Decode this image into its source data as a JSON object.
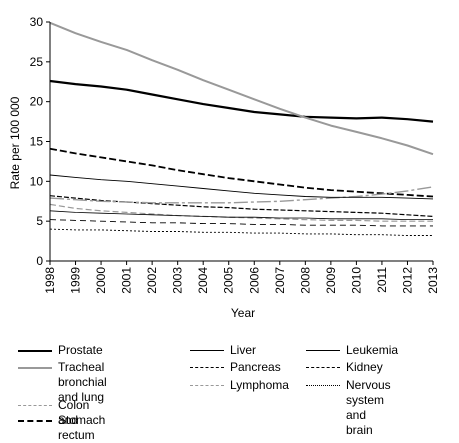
{
  "chart_data": {
    "type": "line",
    "title": "",
    "xlabel": "Year",
    "ylabel": "Rate per 100 000",
    "xlim": [
      1998,
      2013
    ],
    "ylim": [
      0,
      30
    ],
    "x_ticks": [
      "1998",
      "1999",
      "2000",
      "2001",
      "2002",
      "2003",
      "2004",
      "2005",
      "2006",
      "2007",
      "2008",
      "2009",
      "2010",
      "2011",
      "2012",
      "2013"
    ],
    "y_ticks": [
      "0",
      "5",
      "10",
      "15",
      "20",
      "25",
      "30"
    ],
    "x": [
      1998,
      1999,
      2000,
      2001,
      2002,
      2003,
      2004,
      2005,
      2006,
      2007,
      2008,
      2009,
      2010,
      2011,
      2012,
      2013
    ],
    "legend_position": "bottom",
    "series": [
      {
        "name": "Prostate",
        "color": "#000000",
        "dash": "",
        "width": 2.2,
        "values": [
          22.6,
          22.2,
          21.9,
          21.5,
          20.9,
          20.3,
          19.7,
          19.2,
          18.7,
          18.4,
          18.1,
          18.0,
          17.9,
          18.0,
          17.8,
          17.5
        ]
      },
      {
        "name": "Tracheal bronchial\nand lung",
        "color": "#999999",
        "dash": "",
        "width": 2.0,
        "values": [
          29.9,
          28.6,
          27.5,
          26.5,
          25.2,
          24.0,
          22.7,
          21.5,
          20.3,
          19.1,
          18.0,
          17.0,
          16.2,
          15.4,
          14.5,
          13.4
        ]
      },
      {
        "name": "Colon and rectum",
        "color": "#999999",
        "dash": "6,3",
        "width": 1.2,
        "values": [
          7.1,
          6.6,
          6.3,
          6.1,
          5.9,
          5.7,
          5.6,
          5.5,
          5.4,
          5.3,
          5.2,
          5.1,
          5.1,
          5.0,
          5.0,
          5.0
        ]
      },
      {
        "name": "Stomach",
        "color": "#000000",
        "dash": "7,3",
        "width": 1.8,
        "values": [
          14.1,
          13.5,
          13.0,
          12.5,
          12.0,
          11.4,
          10.9,
          10.4,
          10.0,
          9.6,
          9.2,
          8.9,
          8.7,
          8.5,
          8.3,
          8.1
        ]
      },
      {
        "name": "Liver",
        "color": "#000000",
        "dash": "",
        "width": 0.8,
        "values": [
          6.3,
          6.1,
          6.0,
          5.9,
          5.8,
          5.7,
          5.6,
          5.5,
          5.5,
          5.4,
          5.4,
          5.3,
          5.3,
          5.3,
          5.2,
          5.2
        ]
      },
      {
        "name": "Pancreas",
        "color": "#000000",
        "dash": "5,2",
        "width": 1.2,
        "values": [
          8.2,
          7.9,
          7.6,
          7.4,
          7.2,
          7.0,
          6.8,
          6.7,
          6.5,
          6.4,
          6.3,
          6.2,
          6.1,
          6.0,
          5.8,
          5.6
        ]
      },
      {
        "name": "Lymphoma",
        "color": "#999999",
        "dash": "14,3,3,3",
        "width": 1.4,
        "values": [
          7.9,
          7.7,
          7.5,
          7.4,
          7.3,
          7.3,
          7.3,
          7.3,
          7.4,
          7.5,
          7.7,
          7.9,
          8.1,
          8.4,
          8.8,
          9.3
        ]
      },
      {
        "name": "Leukemia",
        "color": "#000000",
        "dash": "",
        "width": 0.9,
        "values": [
          10.8,
          10.5,
          10.2,
          10.0,
          9.7,
          9.4,
          9.1,
          8.8,
          8.5,
          8.3,
          8.1,
          8.0,
          8.0,
          8.0,
          7.9,
          7.8
        ]
      },
      {
        "name": "Kidney",
        "color": "#000000",
        "dash": "6,4",
        "width": 0.9,
        "values": [
          5.2,
          5.1,
          5.0,
          4.9,
          4.8,
          4.8,
          4.7,
          4.7,
          4.6,
          4.6,
          4.5,
          4.5,
          4.5,
          4.4,
          4.4,
          4.4
        ]
      },
      {
        "name": "Nervous system\nand brain",
        "color": "#000000",
        "dash": "2,2",
        "width": 0.9,
        "values": [
          4.0,
          3.9,
          3.9,
          3.8,
          3.7,
          3.7,
          3.6,
          3.6,
          3.5,
          3.5,
          3.4,
          3.4,
          3.3,
          3.3,
          3.2,
          3.2
        ]
      }
    ]
  }
}
